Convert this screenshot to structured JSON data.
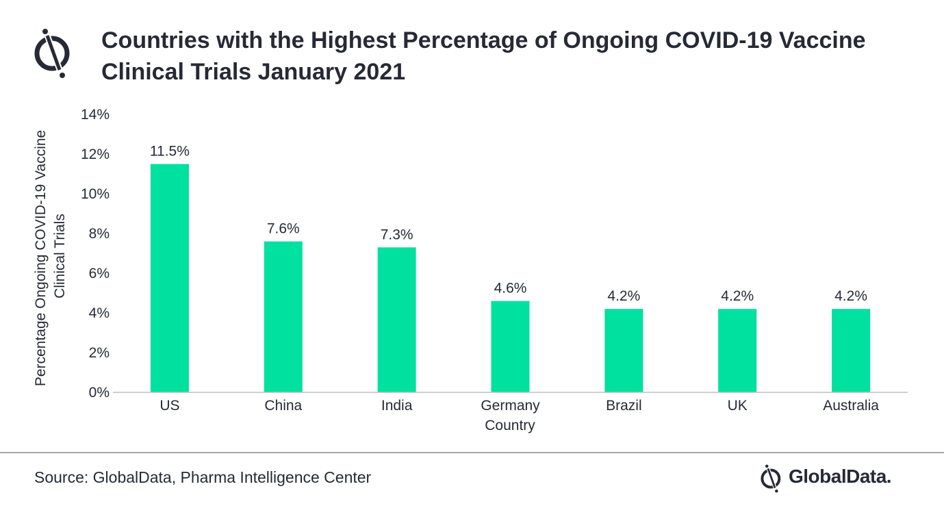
{
  "header": {
    "title_line1": "Countries with the Highest Percentage of Ongoing COVID-19 Vaccine",
    "title_line2": "Clinical Trials January 2021"
  },
  "footer": {
    "source": "Source: GlobalData, Pharma Intelligence Center",
    "brand": "GlobalData."
  },
  "colors": {
    "bar": "#00e09e",
    "text": "#262a36",
    "axis": "#bfbfbf"
  },
  "icons": {
    "logo": "globaldata-logo-icon"
  },
  "chart_data": {
    "type": "bar",
    "title": "Countries with the Highest Percentage of Ongoing COVID-19 Vaccine Clinical Trials January 2021",
    "categories": [
      "US",
      "China",
      "India",
      "Germany",
      "Brazil",
      "UK",
      "Australia"
    ],
    "values": [
      11.5,
      7.6,
      7.3,
      4.6,
      4.2,
      4.2,
      4.2
    ],
    "data_labels": [
      "11.5%",
      "7.6%",
      "7.3%",
      "4.6%",
      "4.2%",
      "4.2%",
      "4.2%"
    ],
    "xlabel": "Country",
    "ylabel_lines": [
      "Percentage Ongoing COVID-19 Vaccine",
      "Clinical Trials"
    ],
    "ylim": [
      0,
      14
    ],
    "yticks": [
      0,
      2,
      4,
      6,
      8,
      10,
      12,
      14
    ],
    "ytick_labels": [
      "0%",
      "2%",
      "4%",
      "6%",
      "8%",
      "10%",
      "12%",
      "14%"
    ],
    "grid": false,
    "legend": "none"
  }
}
